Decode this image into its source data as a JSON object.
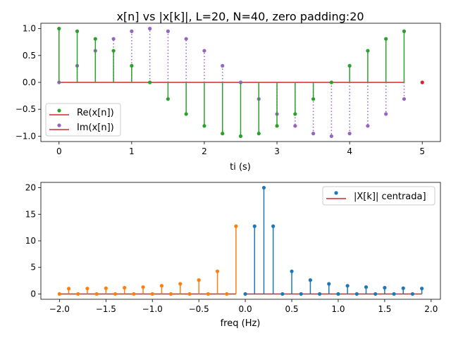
{
  "chart_data": [
    {
      "type": "stem",
      "title": "x[n] vs |x[k]|, L=20, N=40, zero padding:20",
      "xlabel": "ti (s)",
      "ylabel": "",
      "xlim": [
        -0.25,
        5.25
      ],
      "ylim": [
        -1.1,
        1.1
      ],
      "xticks": [
        "0",
        "1",
        "2",
        "3",
        "4",
        "5"
      ],
      "yticks": [
        "1.0",
        "0.5",
        "0.0",
        "−0.5",
        "−1.0"
      ],
      "ytick_values": [
        1.0,
        0.5,
        0.0,
        -0.5,
        -1.0
      ],
      "xtick_values": [
        0,
        1,
        2,
        3,
        4,
        5
      ],
      "legend_placement": "lower-left",
      "x": [
        0,
        0.25,
        0.5,
        0.75,
        1,
        1.25,
        1.5,
        1.75,
        2,
        2.25,
        2.5,
        2.75,
        3,
        3.25,
        3.5,
        3.75,
        4,
        4.25,
        4.5,
        4.75
      ],
      "series": [
        {
          "name": "Re(x[n])",
          "color": "#2ca02c",
          "linestyle": "solid",
          "values": [
            1,
            0.951,
            0.809,
            0.588,
            0.309,
            0,
            -0.309,
            -0.588,
            -0.809,
            -0.951,
            -1,
            -0.951,
            -0.809,
            -0.588,
            -0.309,
            0,
            0.309,
            0.588,
            0.809,
            0.951
          ]
        },
        {
          "name": "Im(x[n])",
          "color": "#9467bd",
          "linestyle": "dotted",
          "values": [
            0,
            0.309,
            0.588,
            0.809,
            0.951,
            1,
            0.951,
            0.809,
            0.588,
            0.309,
            0,
            -0.309,
            -0.588,
            -0.809,
            -0.951,
            -1,
            -0.951,
            -0.809,
            -0.588,
            -0.309
          ]
        }
      ],
      "baseline_color": "#d62728",
      "extra_point": {
        "x": 5,
        "y": 0,
        "color": "#d62728"
      }
    },
    {
      "type": "stem",
      "title": "",
      "xlabel": "freq (Hz)",
      "ylabel": "",
      "xlim": [
        -2.2,
        2.1
      ],
      "ylim": [
        -1,
        21
      ],
      "xticks": [
        "−2.0",
        "−1.5",
        "−1.0",
        "−0.5",
        "0.0",
        "0.5",
        "1.0",
        "1.5",
        "2.0"
      ],
      "xtick_values": [
        -2,
        -1.5,
        -1,
        -0.5,
        0,
        0.5,
        1,
        1.5,
        2
      ],
      "yticks": [
        "0",
        "5",
        "10",
        "15",
        "20"
      ],
      "ytick_values": [
        0,
        5,
        10,
        15,
        20
      ],
      "legend_placement": "upper-right",
      "baseline_color": "#d62728",
      "series": [
        {
          "name": "",
          "color": "#ff7f0e",
          "x": [
            -2.0,
            -1.9,
            -1.8,
            -1.7,
            -1.6,
            -1.5,
            -1.4,
            -1.3,
            -1.2,
            -1.1,
            -1.0,
            -0.9,
            -0.8,
            -0.7,
            -0.6,
            -0.5,
            -0.4,
            -0.3,
            -0.2,
            -0.1
          ],
          "values": [
            0,
            1.003,
            0,
            1.03,
            0,
            1.08,
            0,
            1.17,
            0,
            1.29,
            0,
            1.54,
            0,
            1.9,
            0,
            2.61,
            0,
            4.26,
            0,
            12.75
          ]
        },
        {
          "name": "|X[k]| centrada]",
          "color": "#1f77b4",
          "x": [
            0,
            0.1,
            0.2,
            0.3,
            0.4,
            0.5,
            0.6,
            0.7,
            0.8,
            0.9,
            1.0,
            1.1,
            1.2,
            1.3,
            1.4,
            1.5,
            1.6,
            1.7,
            1.8,
            1.9
          ],
          "values": [
            0,
            12.75,
            20,
            12.75,
            0,
            4.26,
            0,
            2.61,
            0,
            1.9,
            0,
            1.54,
            0,
            1.29,
            0,
            1.17,
            0,
            1.08,
            0,
            1.03
          ]
        }
      ]
    }
  ]
}
